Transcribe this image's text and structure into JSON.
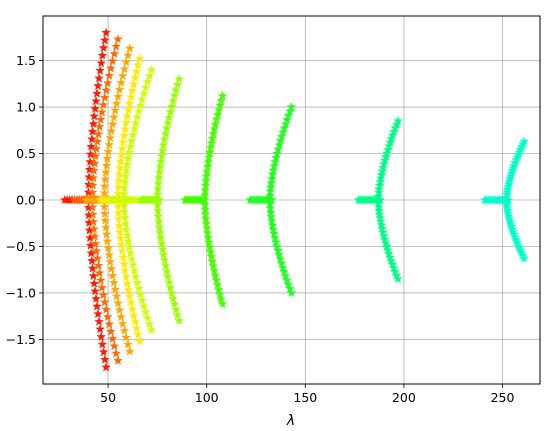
{
  "chart_data": {
    "type": "scatter",
    "title": "",
    "xlabel": "λ",
    "ylabel": "",
    "xlim": [
      17,
      269
    ],
    "ylim": [
      -1.98,
      1.98
    ],
    "xticks": [
      50,
      100,
      150,
      200,
      250
    ],
    "yticks": [
      -1.5,
      -1.0,
      -0.5,
      0.0,
      0.5,
      1.0,
      1.5
    ],
    "xtick_labels": [
      "50",
      "100",
      "150",
      "200",
      "250"
    ],
    "ytick_labels": [
      "−1.5",
      "−1.0",
      "−0.5",
      "0.0",
      "0.5",
      "1.0",
      "1.5"
    ],
    "grid": true,
    "marker": "star",
    "series": [
      {
        "color": "#ff1a00",
        "real_start": 28,
        "real_end": 44,
        "branch_lo": 40,
        "branch_hi": 49,
        "imag_max": 1.8
      },
      {
        "color": "#ff6a00",
        "real_start": 33,
        "real_end": 50,
        "branch_lo": 42,
        "branch_hi": 55,
        "imag_max": 1.73
      },
      {
        "color": "#ffa500",
        "real_start": 39,
        "real_end": 56,
        "branch_lo": 48,
        "branch_hi": 61,
        "imag_max": 1.63
      },
      {
        "color": "#ffea00",
        "real_start": 46,
        "real_end": 63,
        "branch_lo": 55,
        "branch_hi": 66,
        "imag_max": 1.52
      },
      {
        "color": "#ccff00",
        "real_start": 51,
        "real_end": 68,
        "branch_lo": 58,
        "branch_hi": 72,
        "imag_max": 1.4
      },
      {
        "color": "#99ff00",
        "real_start": 67,
        "real_end": 76,
        "branch_lo": 75,
        "branch_hi": 86,
        "imag_max": 1.3
      },
      {
        "color": "#44ff00",
        "real_start": 89,
        "real_end": 99,
        "branch_lo": 99,
        "branch_hi": 108,
        "imag_max": 1.12
      },
      {
        "color": "#22ff22",
        "real_start": 122,
        "real_end": 133,
        "branch_lo": 132,
        "branch_hi": 143,
        "imag_max": 1.0
      },
      {
        "color": "#00ff88",
        "real_start": 177,
        "real_end": 188,
        "branch_lo": 187,
        "branch_hi": 197,
        "imag_max": 0.85
      },
      {
        "color": "#00ffcc",
        "real_start": 241,
        "real_end": 253,
        "branch_lo": 252,
        "branch_hi": 261,
        "imag_max": 0.63
      }
    ]
  }
}
